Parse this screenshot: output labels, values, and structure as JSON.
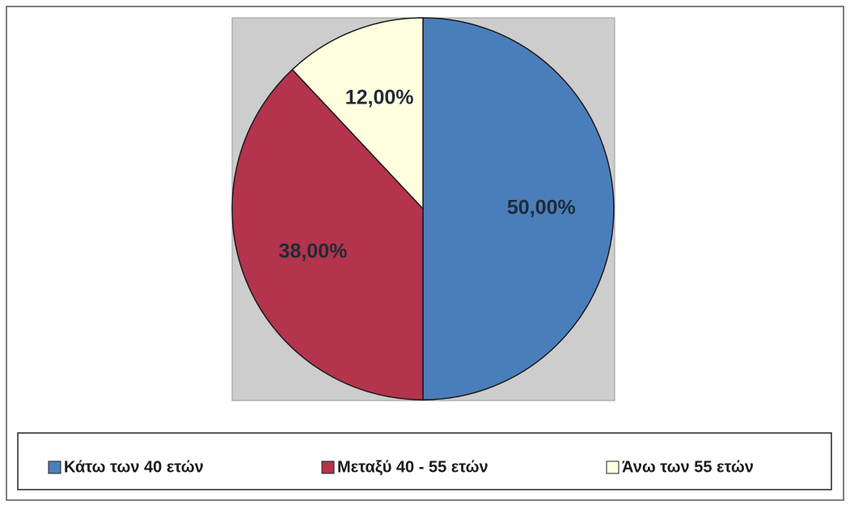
{
  "chart_data": {
    "type": "pie",
    "categories": [
      "Κάτω των 40 ετών",
      "Μεταξύ 40 - 55 ετών",
      "Άνω των 55 ετών"
    ],
    "values": [
      50,
      38,
      12
    ],
    "value_labels": [
      "50,00%",
      "38,00%",
      "12,00%"
    ],
    "colors": [
      "#4a7ebb",
      "#b3344c",
      "#ffffe0"
    ],
    "legend": "bottom"
  }
}
